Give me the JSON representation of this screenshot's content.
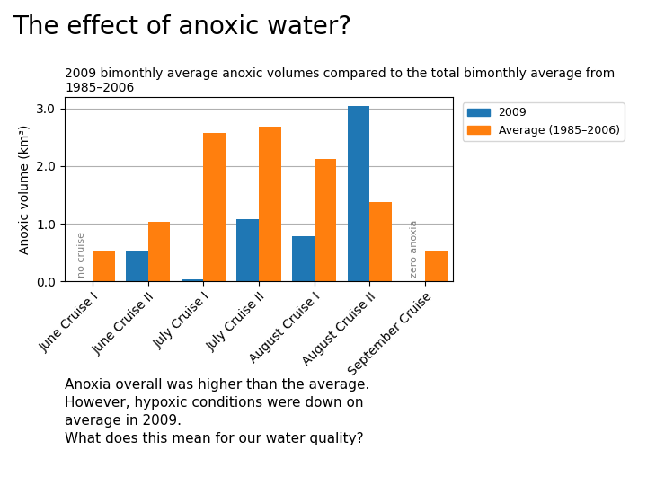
{
  "chart_data": {
    "type": "bar",
    "title": "The effect of anoxic water?",
    "subtitle": "2009 bimonthly average anoxic volumes compared to the total bimonthly average from 1985–2006",
    "ylabel": "Anoxic volume (km³)",
    "categories": [
      "June Cruise I",
      "June Cruise II",
      "July Cruise I",
      "July Cruise II",
      "August Cruise I",
      "August Cruise II",
      "September Cruise"
    ],
    "series": [
      {
        "name": "2009",
        "values": [
          null,
          0.53,
          0.04,
          1.08,
          0.78,
          3.05,
          null
        ]
      },
      {
        "name": "Average (1985–2006)",
        "values": [
          0.51,
          1.03,
          2.58,
          2.68,
          2.12,
          1.38,
          0.52
        ]
      }
    ],
    "ylim": [
      0.0,
      3.2
    ],
    "yticks": [
      {
        "value": 0.0,
        "label": "0.0"
      },
      {
        "value": 1.0,
        "label": "1.0"
      },
      {
        "value": 2.0,
        "label": "2.0"
      },
      {
        "value": 3.0,
        "label": "3.0"
      }
    ],
    "grid": true,
    "legend": "upper left",
    "annotations": [
      {
        "text": "no cruise",
        "category": "June Cruise I",
        "series": "2009"
      },
      {
        "text": "zero anoxia",
        "category": "September Cruise",
        "series": "2009"
      },
      {
        "text": "Anoxia overall was higher than the average.\nHowever, hypoxic conditions were down on\naverage in 2009.\nWhat does this mean for our water quality?"
      }
    ]
  }
}
